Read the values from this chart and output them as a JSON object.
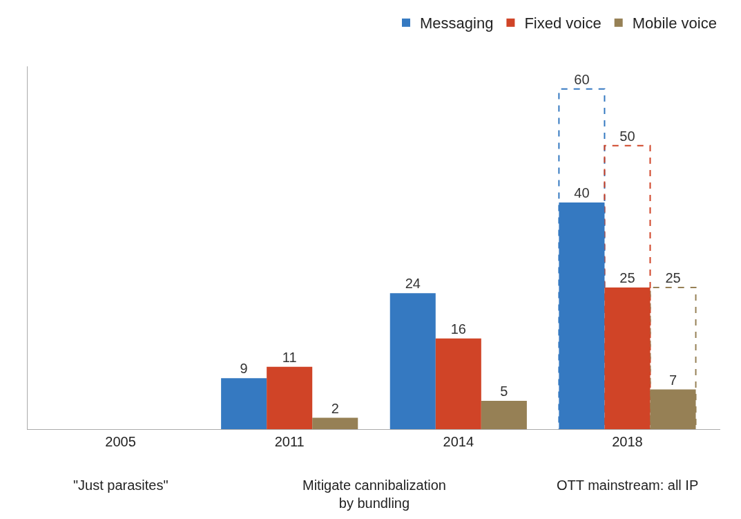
{
  "chart_data": {
    "type": "bar",
    "categories": [
      "2005",
      "2011",
      "2014",
      "2018"
    ],
    "series": [
      {
        "name": "Messaging",
        "color": "#3579c1",
        "values": [
          null,
          9,
          24,
          40
        ]
      },
      {
        "name": "Fixed voice",
        "color": "#d04427",
        "values": [
          null,
          11,
          16,
          25
        ]
      },
      {
        "name": "Mobile voice",
        "color": "#968055",
        "values": [
          null,
          2,
          5,
          7
        ]
      },
      {
        "color": "#3579c1",
        "line_style": "dashed",
        "values": [
          null,
          null,
          null,
          60
        ]
      },
      {
        "color": "#d04427",
        "line_style": "dashed",
        "values": [
          null,
          null,
          null,
          50
        ]
      },
      {
        "color": "#968055",
        "line_style": "dashed",
        "values": [
          null,
          null,
          null,
          25
        ]
      }
    ],
    "annotations": [
      "\"Just parasites\"",
      "Mitigate cannibalization by bundling",
      "OTT mainstream: all IP"
    ],
    "ylim": [
      0,
      64
    ],
    "data_labels": true,
    "tick_labels": "x",
    "grid": false,
    "legend": "top right"
  }
}
